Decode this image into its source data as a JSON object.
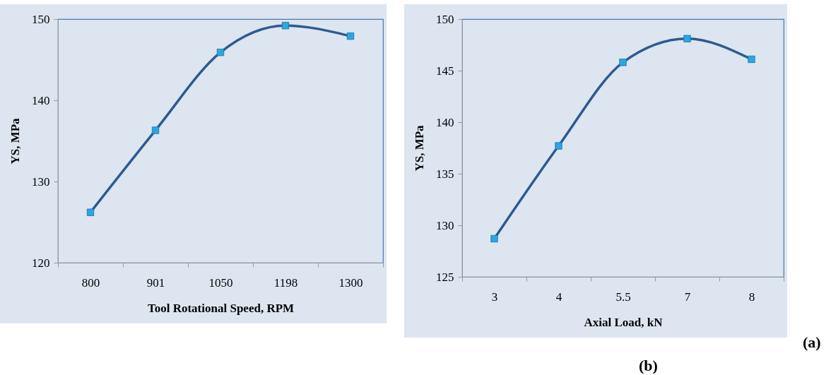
{
  "chart_data": [
    {
      "type": "line",
      "xlabel": "Tool Rotational Speed, RPM",
      "ylabel": "YS,  MPa",
      "categories": [
        "800",
        "901",
        "1050",
        "1198",
        "1300"
      ],
      "series": [
        {
          "color": "#2e5a8f",
          "values": [
            126.2,
            136.3,
            145.9,
            149.2,
            147.9
          ]
        }
      ],
      "ylim": [
        120,
        150
      ],
      "yticks": [
        120,
        130,
        140,
        150
      ],
      "marker": "square",
      "line_style": "solid",
      "grid": false,
      "annotations": [
        "(a)"
      ]
    },
    {
      "type": "line",
      "xlabel": "Axial Load, kN",
      "ylabel": "YS,  MPa",
      "categories": [
        "3",
        "4",
        "5.5",
        "7",
        "8"
      ],
      "series": [
        {
          "color": "#2e5a8f",
          "values": [
            128.7,
            137.7,
            145.8,
            148.1,
            146.1
          ]
        }
      ],
      "ylim": [
        125,
        150
      ],
      "yticks": [
        125,
        130,
        135,
        140,
        145,
        150
      ],
      "marker": "square",
      "line_style": "solid",
      "grid": false,
      "annotations": [
        "(b)"
      ]
    }
  ]
}
